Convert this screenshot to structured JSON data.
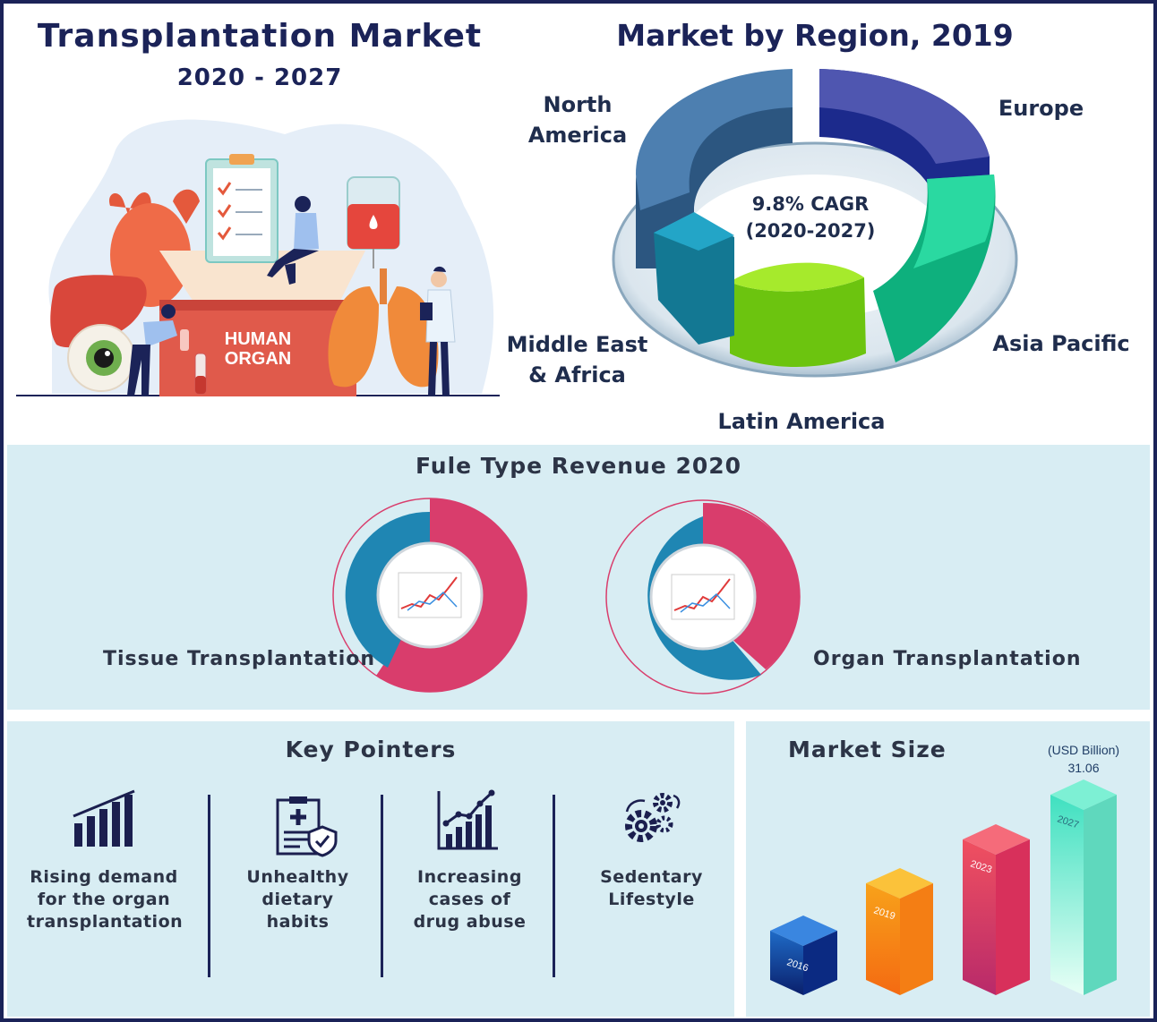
{
  "header": {
    "title": "Transplantation Market",
    "years": "2020 - 2027"
  },
  "illustration": {
    "box_label_line1": "HUMAN",
    "box_label_line2": "ORGAN"
  },
  "region_chart": {
    "title": "Market by Region, 2019",
    "cagr_line1": "9.8% CAGR",
    "cagr_line2": "(2020-2027)",
    "labels": {
      "north_america_1": "North",
      "north_america_2": "America",
      "europe": "Europe",
      "asia_pacific": "Asia Pacific",
      "latin_america": "Latin America",
      "mea_1": "Middle East",
      "mea_2": "& Africa"
    }
  },
  "fuel_section": {
    "title": "Fule Type Revenue 2020",
    "left_label": "Tissue Transplantation",
    "right_label": "Organ Transplantation"
  },
  "key_pointers": {
    "title": "Key Pointers",
    "items": [
      {
        "line1": "Rising demand",
        "line2": "for the organ",
        "line3": "transplantation",
        "icon": "bar-chart-icon"
      },
      {
        "line1": "Unhealthy",
        "line2": "dietary",
        "line3": "habits",
        "icon": "medical-clipboard-icon"
      },
      {
        "line1": "Increasing",
        "line2": "cases of",
        "line3": "drug abuse",
        "icon": "growth-chart-icon"
      },
      {
        "line1": "Sedentary",
        "line2": "Lifestyle",
        "line3": "",
        "icon": "gears-icon"
      }
    ]
  },
  "market_size": {
    "title": "Market Size",
    "unit": "(USD Billion)",
    "value_label": "31.06"
  },
  "chart_data": [
    {
      "type": "pie",
      "title": "Market by Region, 2019",
      "categories": [
        "North America",
        "Europe",
        "Asia Pacific",
        "Latin America",
        "Middle East & Africa"
      ],
      "colors": [
        "#3e6e9e",
        "#27318f",
        "#14c98f",
        "#7fd61a",
        "#1690b0"
      ]
    },
    {
      "type": "pie",
      "title": "Fule Type Revenue 2020",
      "categories": [
        "Tissue Transplantation",
        "Organ Transplantation"
      ],
      "colors": [
        "#d93d6c",
        "#1f86b3"
      ]
    },
    {
      "type": "bar",
      "title": "Market Size",
      "ylabel": "(USD Billion)",
      "categories": [
        "2016",
        "2019",
        "2023",
        "2027"
      ],
      "values": [
        null,
        null,
        null,
        31.06
      ],
      "colors": [
        "#1b5fb0",
        "#f68a12",
        "#e53957",
        "#5ee9cf"
      ]
    }
  ]
}
